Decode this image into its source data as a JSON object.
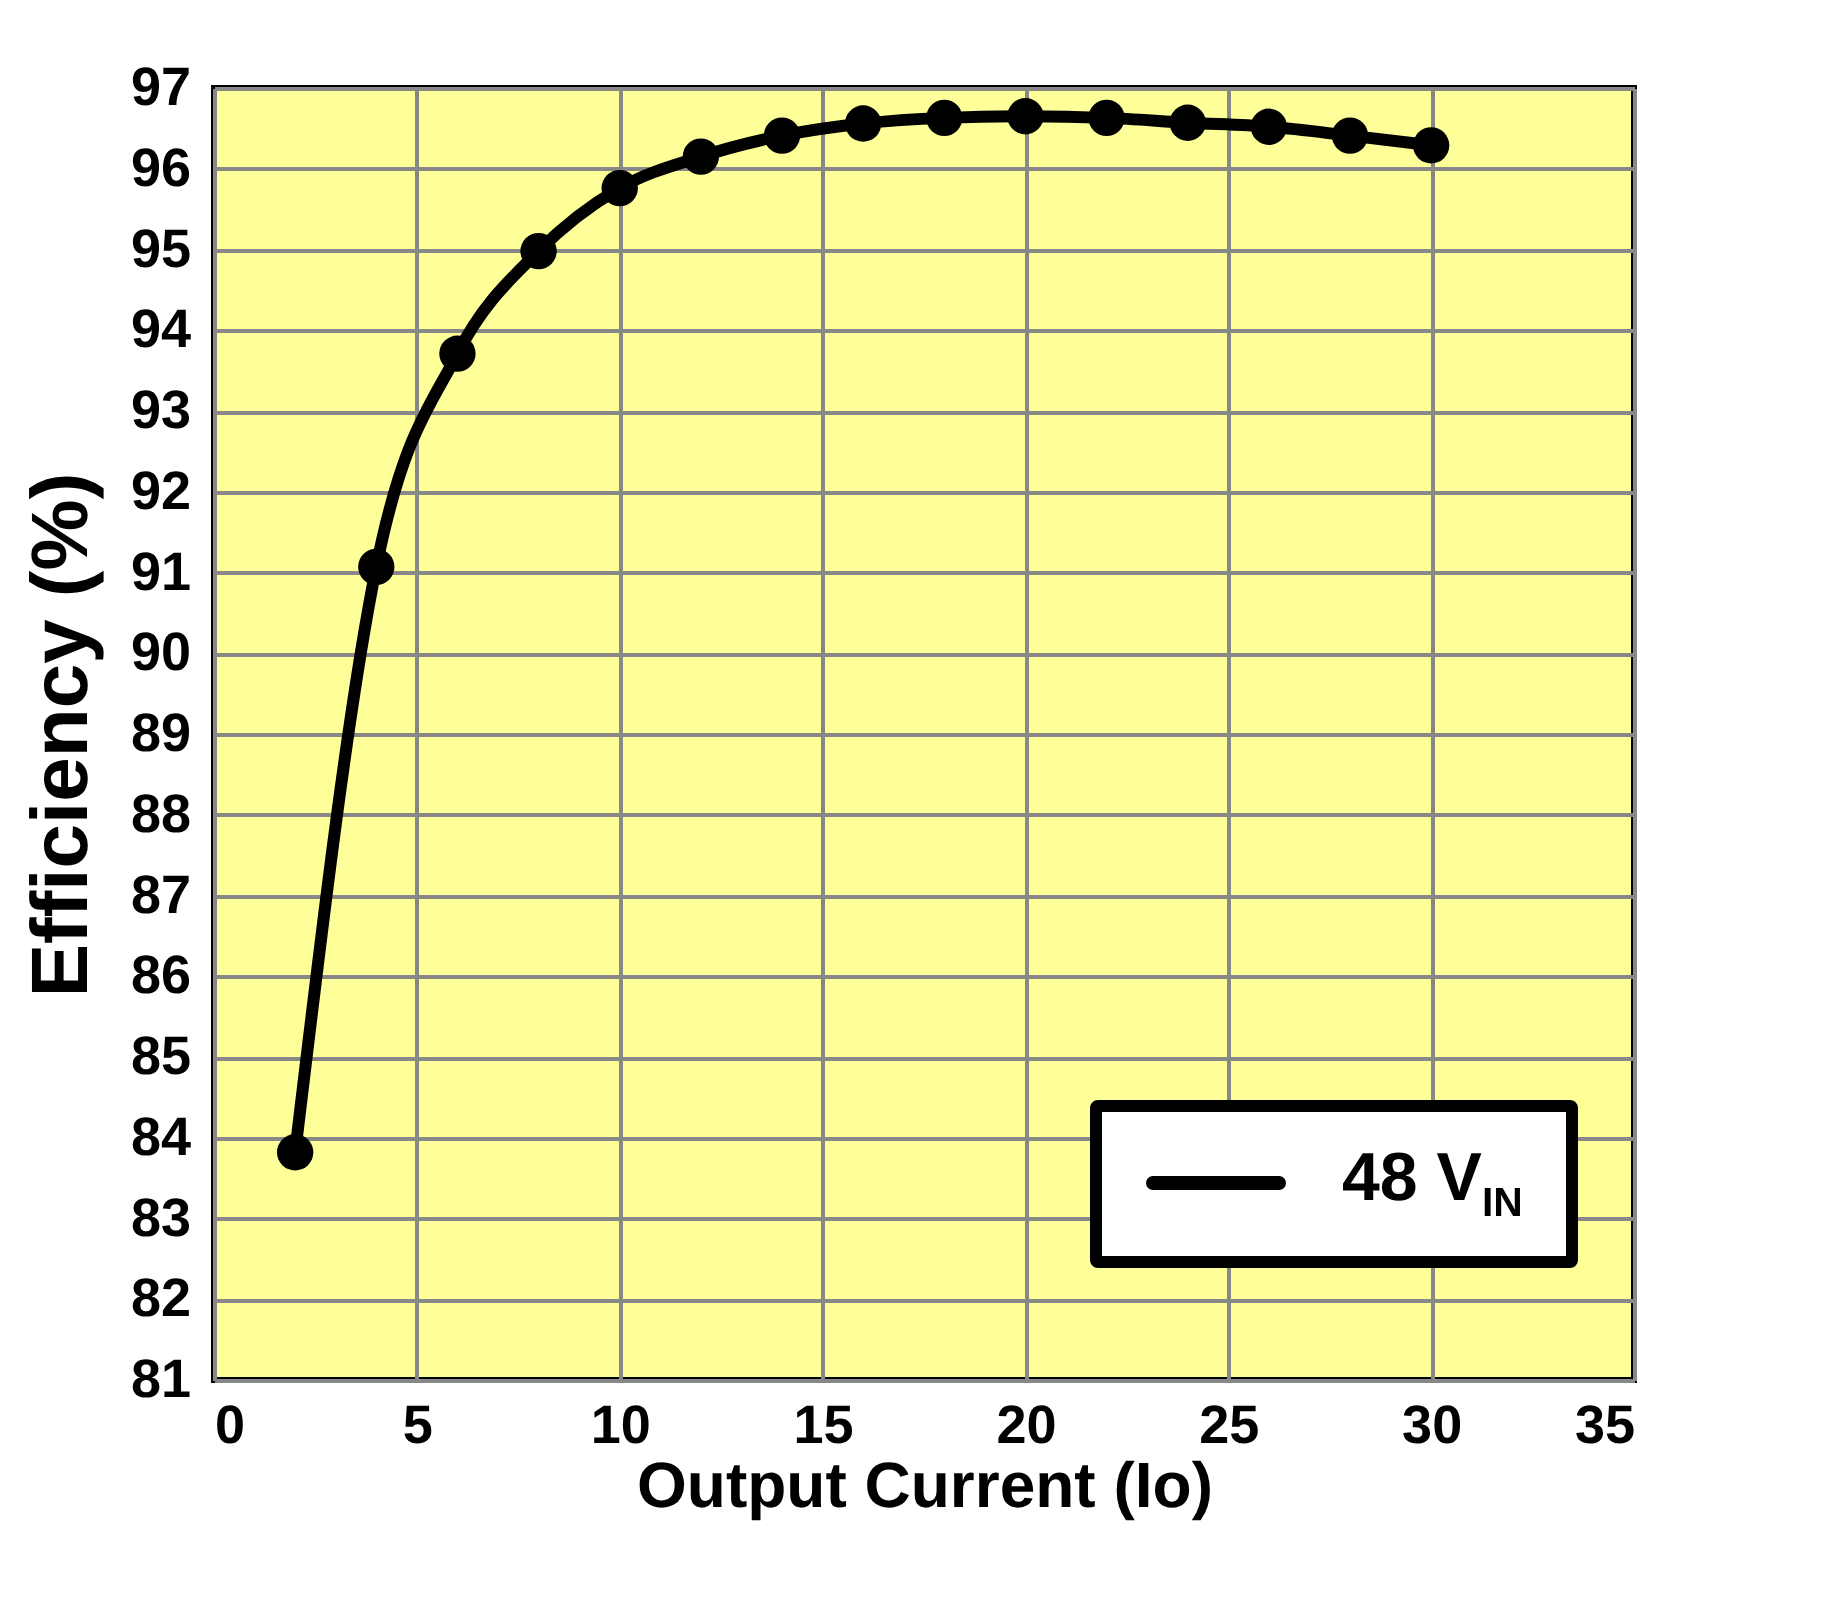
{
  "chart_data": {
    "type": "line",
    "xlabel": "Output Current (Io)",
    "ylabel": "Efficiency (%)",
    "x": [
      2,
      4,
      6,
      8,
      10,
      12,
      14,
      16,
      18,
      20,
      22,
      24,
      26,
      28,
      30
    ],
    "series": [
      {
        "name": "48 V$_{IN}$",
        "color": "#000000",
        "values": [
          83.82,
          91.07,
          93.71,
          94.98,
          95.76,
          96.15,
          96.41,
          96.56,
          96.63,
          96.65,
          96.63,
          96.57,
          96.52,
          96.41,
          96.29
        ]
      }
    ],
    "xlim": [
      0,
      35
    ],
    "xticks": [
      0,
      5,
      10,
      15,
      20,
      25,
      30,
      35
    ],
    "ylim": [
      81,
      97
    ],
    "yticks": [
      81,
      82,
      83,
      84,
      85,
      86,
      87,
      88,
      89,
      90,
      91,
      92,
      93,
      94,
      95,
      96,
      97
    ],
    "grid": true,
    "legend": "bottom right",
    "marker": "circle",
    "line_style": "solid"
  }
}
